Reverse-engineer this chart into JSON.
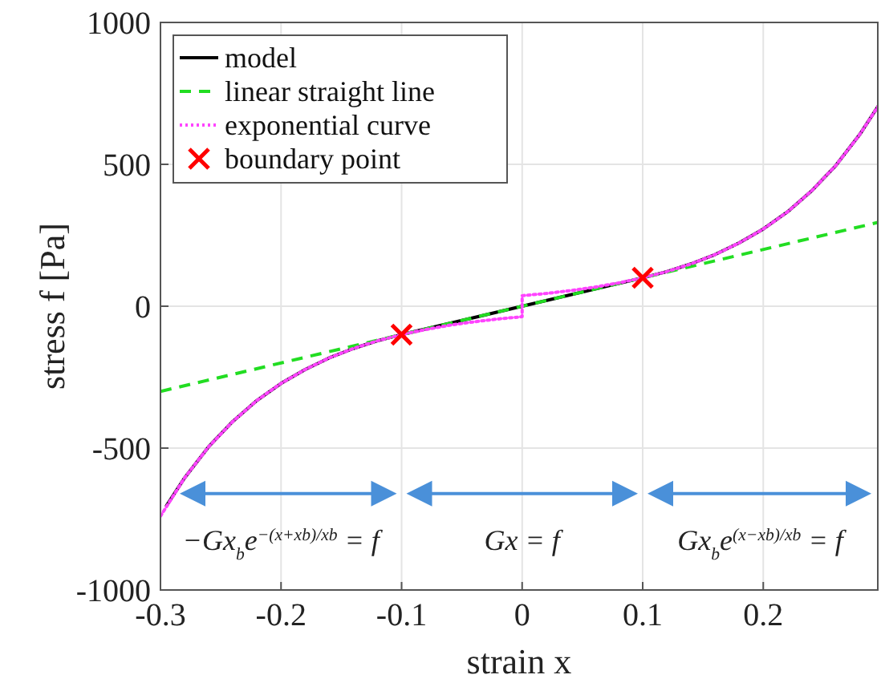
{
  "chart_data": {
    "type": "line",
    "xlabel": "strain x",
    "ylabel": "stress f [Pa]",
    "xlim": [
      -0.3,
      0.295
    ],
    "xticks": [
      -0.3,
      -0.2,
      -0.1,
      0,
      0.1,
      0.2
    ],
    "ylim": [
      -1000,
      1000
    ],
    "yticks": [
      -1000,
      -500,
      0,
      500,
      1000
    ],
    "grid": true,
    "legend": "top left",
    "series": [
      {
        "name": "model",
        "color": "#000000",
        "line_style": "solid",
        "x": [
          -0.295,
          -0.28,
          -0.26,
          -0.24,
          -0.22,
          -0.2,
          -0.18,
          -0.16,
          -0.14,
          -0.12,
          -0.1,
          -0.05,
          0,
          0.05,
          0.1,
          0.12,
          0.14,
          0.16,
          0.18,
          0.2,
          0.22,
          0.24,
          0.26,
          0.28,
          0.295
        ],
        "values": [
          -703,
          -605,
          -495,
          -406,
          -332,
          -272,
          -223,
          -182,
          -149,
          -122,
          -100,
          -50,
          0,
          50,
          100,
          122,
          149,
          182,
          223,
          272,
          332,
          406,
          495,
          605,
          703
        ]
      },
      {
        "name": "linear straight line",
        "color": "#22dd22",
        "line_style": "dashed",
        "x": [
          -0.3,
          0.295
        ],
        "values": [
          -300,
          295
        ]
      },
      {
        "name": "exponential curve",
        "color": "#ff44ff",
        "line_style": "dotted",
        "x": [
          -0.3,
          -0.28,
          -0.26,
          -0.24,
          -0.22,
          -0.2,
          -0.18,
          -0.16,
          -0.14,
          -0.12,
          -0.1,
          -0.08,
          -0.06,
          -0.04,
          -0.02,
          0,
          0,
          0.02,
          0.04,
          0.06,
          0.08,
          0.1,
          0.12,
          0.14,
          0.16,
          0.18,
          0.2,
          0.22,
          0.24,
          0.26,
          0.28,
          0.295
        ],
        "values": [
          -740,
          -605,
          -495,
          -406,
          -332,
          -272,
          -223,
          -182,
          -149,
          -122,
          -100,
          -82,
          -67,
          -55,
          -45,
          -37,
          37,
          45,
          55,
          67,
          82,
          100,
          122,
          149,
          182,
          223,
          272,
          332,
          406,
          495,
          605,
          703
        ]
      },
      {
        "name": "boundary point",
        "type": "scatter",
        "color": "#ff0000",
        "marker": "cross",
        "x": [
          -0.1,
          0.1
        ],
        "values": [
          -100,
          100
        ]
      }
    ],
    "annotations": [
      "−Gx$_{b}$e$^{−(x+xb)/xb}$ = f",
      "Gx = f",
      "Gx$_{b}$e$^{(x−xb)/xb}$ = f"
    ]
  }
}
